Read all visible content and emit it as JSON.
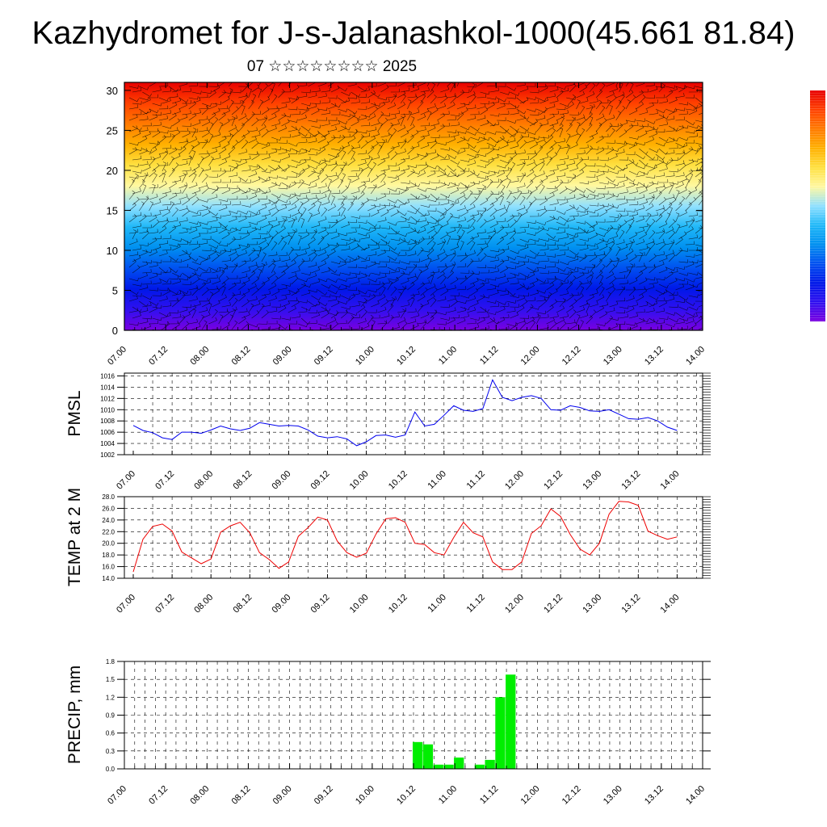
{
  "figure": {
    "title": "Kazhydromet for J-s-Jalanashkol-1000(45.661 81.84)",
    "subtitle": "07 ☆☆☆☆☆☆☆☆ 2025"
  },
  "chart_data": [
    {
      "type": "heatmap",
      "title": "",
      "xlabel": "",
      "ylabel": "",
      "x_ticks": [
        "07.00",
        "07.12",
        "08.00",
        "08.12",
        "09.00",
        "09.12",
        "10.00",
        "10.12",
        "11.00",
        "11.12",
        "12.00",
        "12.12",
        "13.00",
        "13.12",
        "14.00"
      ],
      "y_ticks": [
        0,
        5,
        10,
        15,
        20,
        25,
        30
      ],
      "ylim": [
        0,
        31
      ],
      "colormap": [
        "#7a00e0",
        "#3010f0",
        "#0018e8",
        "#0050f0",
        "#0090f0",
        "#20b8f8",
        "#90e0ff",
        "#fff8a0",
        "#ffe040",
        "#ffb000",
        "#ff7a00",
        "#ff4000",
        "#e80000"
      ],
      "colorbar": "right, no labels",
      "overlay": "wind barbs"
    },
    {
      "type": "line",
      "ylabel": "PMSL",
      "x_ticks": [
        "07.00",
        "07.12",
        "08.00",
        "08.12",
        "09.00",
        "09.12",
        "10.00",
        "10.12",
        "11.00",
        "11.12",
        "12.00",
        "12.12",
        "13.00",
        "13.12",
        "14.00"
      ],
      "y_ticks": [
        "1002",
        "1004",
        "1006",
        "1008",
        "1010",
        "1012",
        "1014",
        "1016"
      ],
      "ylim": [
        1002,
        1016.5
      ],
      "color": "#0000ee",
      "grid": true,
      "x": [
        0,
        3,
        6,
        9,
        12,
        15,
        18,
        21,
        24,
        27,
        30,
        33,
        36,
        39,
        42,
        45,
        48,
        51,
        54,
        57,
        60,
        63,
        66,
        69,
        72,
        75,
        78,
        81,
        84,
        87,
        90,
        93,
        96,
        99,
        102,
        105,
        108,
        111,
        114,
        117,
        120,
        123,
        126,
        129,
        132,
        135,
        138,
        141,
        144,
        147,
        150,
        153,
        156,
        159,
        162,
        165,
        168
      ],
      "values": [
        1007.2,
        1006.3,
        1005.9,
        1005.0,
        1004.7,
        1006.0,
        1006.0,
        1005.8,
        1006.4,
        1007.1,
        1006.6,
        1006.3,
        1006.7,
        1007.7,
        1007.4,
        1007.1,
        1007.2,
        1007.1,
        1006.4,
        1005.3,
        1005.0,
        1005.2,
        1004.8,
        1003.6,
        1004.3,
        1005.4,
        1005.5,
        1005.1,
        1005.5,
        1009.6,
        1007.1,
        1007.4,
        1009.0,
        1010.7,
        1009.9,
        1009.7,
        1010.2,
        1015.3,
        1012.2,
        1011.6,
        1012.2,
        1012.5,
        1012.0,
        1010.0,
        1009.9,
        1010.7,
        1010.4,
        1009.8,
        1009.7,
        1010.0,
        1009.2,
        1008.4,
        1008.3,
        1008.6,
        1008.0,
        1006.9,
        1006.3
      ]
    },
    {
      "type": "line",
      "ylabel": "TEMP at 2 M",
      "x_ticks": [
        "07.00",
        "07.12",
        "08.00",
        "08.12",
        "09.00",
        "09.12",
        "10.00",
        "10.12",
        "11.00",
        "11.12",
        "12.00",
        "12.12",
        "13.00",
        "13.12",
        "14.00"
      ],
      "y_ticks": [
        "14.0",
        "16.0",
        "18.0",
        "20.0",
        "22.0",
        "24.0",
        "26.0",
        "28.0"
      ],
      "ylim": [
        14,
        28
      ],
      "color": "#ee0000",
      "grid": true,
      "x": [
        0,
        3,
        6,
        9,
        12,
        15,
        18,
        21,
        24,
        27,
        30,
        33,
        36,
        39,
        42,
        45,
        48,
        51,
        54,
        57,
        60,
        63,
        66,
        69,
        72,
        75,
        78,
        81,
        84,
        87,
        90,
        93,
        96,
        99,
        102,
        105,
        108,
        111,
        114,
        117,
        120,
        123,
        126,
        129,
        132,
        135,
        138,
        141,
        144,
        147,
        150,
        153,
        156,
        159,
        162,
        165,
        168
      ],
      "values": [
        15.1,
        20.7,
        22.9,
        23.3,
        22.1,
        18.5,
        17.5,
        16.5,
        17.3,
        21.9,
        23.0,
        23.6,
        21.8,
        18.4,
        17.2,
        15.7,
        16.8,
        21.2,
        22.7,
        24.5,
        24.0,
        20.4,
        18.4,
        17.6,
        18.3,
        21.6,
        24.2,
        24.4,
        23.6,
        20.0,
        19.8,
        18.4,
        18.0,
        21.0,
        23.6,
        21.8,
        21.1,
        16.8,
        15.5,
        15.5,
        16.8,
        21.7,
        23.0,
        25.9,
        24.6,
        21.5,
        19.0,
        18.0,
        20.0,
        25.0,
        27.2,
        27.1,
        26.5,
        22.1,
        21.3,
        20.7,
        21.1
      ]
    },
    {
      "type": "bar",
      "ylabel": "PRECIP, mm",
      "x_ticks": [
        "07.00",
        "07.12",
        "08.00",
        "08.12",
        "09.00",
        "09.12",
        "10.00",
        "10.12",
        "11.00",
        "11.12",
        "12.00",
        "12.12",
        "13.00",
        "13.12",
        "14.00"
      ],
      "y_ticks": [
        "0.0",
        "0.3",
        "0.6",
        "0.9",
        "1.2",
        "1.5",
        "1.8"
      ],
      "ylim": [
        0,
        1.8
      ],
      "color": "#00ee00",
      "grid": true,
      "x": [
        84,
        87,
        90,
        93,
        96,
        99,
        102,
        105,
        108,
        111,
        114
      ],
      "values": [
        0.45,
        0.41,
        0.07,
        0.07,
        0.19,
        0.0,
        0.07,
        0.15,
        1.2,
        1.58,
        0.0
      ]
    }
  ]
}
